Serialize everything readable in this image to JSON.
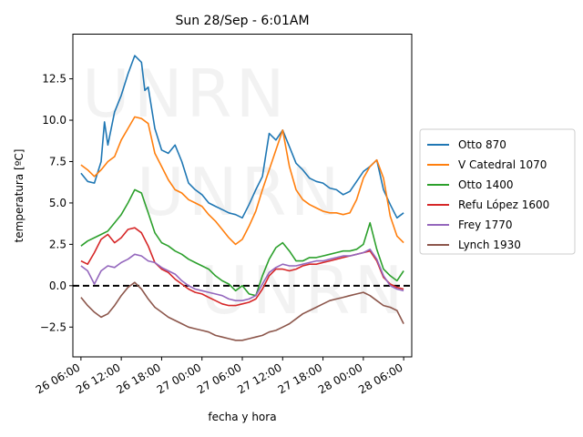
{
  "chart_data": {
    "type": "line",
    "title": "Sun 28/Sep - 6:01AM",
    "xlabel": "fecha y hora",
    "ylabel": "temperatura [ºC]",
    "ylim": [
      -4.3,
      15.2
    ],
    "xlim": [
      "2025-09-26 04:48",
      "2025-09-28 07:12"
    ],
    "x_ticks": [
      "2025-09-26 06:00",
      "2025-09-26 12:00",
      "2025-09-26 18:00",
      "2025-09-27 00:00",
      "2025-09-27 06:00",
      "2025-09-27 12:00",
      "2025-09-27 18:00",
      "2025-09-28 00:00",
      "2025-09-28 06:00"
    ],
    "x_tick_labels": [
      "26 06:00",
      "26 12:00",
      "26 18:00",
      "27 00:00",
      "27 06:00",
      "27 12:00",
      "27 18:00",
      "28 00:00",
      "28 06:00"
    ],
    "y_ticks": [
      -2.5,
      0.0,
      2.5,
      5.0,
      7.5,
      10.0,
      12.5
    ],
    "y_tick_labels": [
      "−2.5",
      "0.0",
      "2.5",
      "5.0",
      "7.5",
      "10.0",
      "12.5"
    ],
    "grid": false,
    "legend_position": "outside-right",
    "reference_line": {
      "y": 0,
      "style": "dashed",
      "color": "#000000"
    },
    "watermark": "UNRN",
    "series": [
      {
        "name": "Otto 870",
        "color": "#1f77b4",
        "x": [
          "2025-09-26 06:00",
          "2025-09-26 07:00",
          "2025-09-26 08:00",
          "2025-09-26 09:00",
          "2025-09-26 09:30",
          "2025-09-26 10:00",
          "2025-09-26 11:00",
          "2025-09-26 12:00",
          "2025-09-26 13:00",
          "2025-09-26 14:00",
          "2025-09-26 15:00",
          "2025-09-26 15:30",
          "2025-09-26 16:00",
          "2025-09-26 17:00",
          "2025-09-26 18:00",
          "2025-09-26 19:00",
          "2025-09-26 20:00",
          "2025-09-26 21:00",
          "2025-09-26 22:00",
          "2025-09-26 23:00",
          "2025-09-27 00:00",
          "2025-09-27 01:00",
          "2025-09-27 02:00",
          "2025-09-27 03:00",
          "2025-09-27 04:00",
          "2025-09-27 05:00",
          "2025-09-27 06:00",
          "2025-09-27 07:00",
          "2025-09-27 08:00",
          "2025-09-27 09:00",
          "2025-09-27 10:00",
          "2025-09-27 11:00",
          "2025-09-27 12:00",
          "2025-09-27 13:00",
          "2025-09-27 14:00",
          "2025-09-27 15:00",
          "2025-09-27 16:00",
          "2025-09-27 17:00",
          "2025-09-27 18:00",
          "2025-09-27 19:00",
          "2025-09-27 20:00",
          "2025-09-27 21:00",
          "2025-09-27 22:00",
          "2025-09-27 23:00",
          "2025-09-28 00:00",
          "2025-09-28 01:00",
          "2025-09-28 02:00",
          "2025-09-28 03:00",
          "2025-09-28 04:00",
          "2025-09-28 05:00",
          "2025-09-28 06:00"
        ],
        "y": [
          6.8,
          6.3,
          6.2,
          7.5,
          9.9,
          8.5,
          10.5,
          11.5,
          12.8,
          13.9,
          13.5,
          11.8,
          12.0,
          9.5,
          8.2,
          8.0,
          8.5,
          7.5,
          6.2,
          5.8,
          5.5,
          5.0,
          4.8,
          4.6,
          4.4,
          4.3,
          4.1,
          4.9,
          5.8,
          6.6,
          9.2,
          8.8,
          9.4,
          8.4,
          7.4,
          7.0,
          6.5,
          6.3,
          6.2,
          5.9,
          5.8,
          5.5,
          5.7,
          6.3,
          6.9,
          7.2,
          7.6,
          5.8,
          4.9,
          4.1,
          4.4
        ]
      },
      {
        "name": "V Catedral 1070",
        "color": "#ff7f0e",
        "x": [
          "2025-09-26 06:00",
          "2025-09-26 07:00",
          "2025-09-26 08:00",
          "2025-09-26 09:00",
          "2025-09-26 10:00",
          "2025-09-26 11:00",
          "2025-09-26 12:00",
          "2025-09-26 13:00",
          "2025-09-26 14:00",
          "2025-09-26 15:00",
          "2025-09-26 16:00",
          "2025-09-26 17:00",
          "2025-09-26 18:00",
          "2025-09-26 19:00",
          "2025-09-26 20:00",
          "2025-09-26 21:00",
          "2025-09-26 22:00",
          "2025-09-26 23:00",
          "2025-09-27 00:00",
          "2025-09-27 01:00",
          "2025-09-27 02:00",
          "2025-09-27 03:00",
          "2025-09-27 04:00",
          "2025-09-27 05:00",
          "2025-09-27 06:00",
          "2025-09-27 07:00",
          "2025-09-27 08:00",
          "2025-09-27 09:00",
          "2025-09-27 10:00",
          "2025-09-27 11:00",
          "2025-09-27 12:00",
          "2025-09-27 13:00",
          "2025-09-27 14:00",
          "2025-09-27 15:00",
          "2025-09-27 16:00",
          "2025-09-27 17:00",
          "2025-09-27 18:00",
          "2025-09-27 19:00",
          "2025-09-27 20:00",
          "2025-09-27 21:00",
          "2025-09-27 22:00",
          "2025-09-27 23:00",
          "2025-09-28 00:00",
          "2025-09-28 01:00",
          "2025-09-28 02:00",
          "2025-09-28 03:00",
          "2025-09-28 04:00",
          "2025-09-28 05:00",
          "2025-09-28 06:00"
        ],
        "y": [
          7.3,
          7.0,
          6.6,
          7.0,
          7.5,
          7.8,
          8.8,
          9.5,
          10.2,
          10.1,
          9.8,
          8.0,
          7.2,
          6.4,
          5.8,
          5.6,
          5.2,
          5.0,
          4.8,
          4.3,
          3.9,
          3.4,
          2.9,
          2.5,
          2.8,
          3.6,
          4.5,
          5.8,
          7.0,
          8.2,
          9.4,
          7.2,
          5.8,
          5.2,
          4.9,
          4.7,
          4.5,
          4.4,
          4.4,
          4.3,
          4.4,
          5.2,
          6.5,
          7.2,
          7.6,
          6.5,
          4.2,
          3.0,
          2.6
        ]
      },
      {
        "name": "Otto 1400",
        "color": "#2ca02c",
        "x": [
          "2025-09-26 06:00",
          "2025-09-26 07:00",
          "2025-09-26 08:00",
          "2025-09-26 09:00",
          "2025-09-26 10:00",
          "2025-09-26 11:00",
          "2025-09-26 12:00",
          "2025-09-26 13:00",
          "2025-09-26 14:00",
          "2025-09-26 15:00",
          "2025-09-26 16:00",
          "2025-09-26 17:00",
          "2025-09-26 18:00",
          "2025-09-26 19:00",
          "2025-09-26 20:00",
          "2025-09-26 21:00",
          "2025-09-26 22:00",
          "2025-09-26 23:00",
          "2025-09-27 00:00",
          "2025-09-27 01:00",
          "2025-09-27 02:00",
          "2025-09-27 03:00",
          "2025-09-27 04:00",
          "2025-09-27 05:00",
          "2025-09-27 06:00",
          "2025-09-27 07:00",
          "2025-09-27 08:00",
          "2025-09-27 09:00",
          "2025-09-27 10:00",
          "2025-09-27 11:00",
          "2025-09-27 12:00",
          "2025-09-27 13:00",
          "2025-09-27 14:00",
          "2025-09-27 15:00",
          "2025-09-27 16:00",
          "2025-09-27 17:00",
          "2025-09-27 18:00",
          "2025-09-27 19:00",
          "2025-09-27 20:00",
          "2025-09-27 21:00",
          "2025-09-27 22:00",
          "2025-09-27 23:00",
          "2025-09-28 00:00",
          "2025-09-28 01:00",
          "2025-09-28 02:00",
          "2025-09-28 03:00",
          "2025-09-28 04:00",
          "2025-09-28 05:00",
          "2025-09-28 06:00"
        ],
        "y": [
          2.4,
          2.7,
          2.9,
          3.1,
          3.3,
          3.8,
          4.3,
          5.0,
          5.8,
          5.6,
          4.4,
          3.2,
          2.6,
          2.4,
          2.1,
          1.9,
          1.6,
          1.4,
          1.2,
          1.0,
          0.6,
          0.3,
          0.1,
          -0.3,
          0.0,
          -0.5,
          -0.6,
          0.6,
          1.6,
          2.3,
          2.6,
          2.1,
          1.5,
          1.5,
          1.7,
          1.7,
          1.8,
          1.9,
          2.0,
          2.1,
          2.1,
          2.2,
          2.5,
          3.8,
          2.2,
          1.0,
          0.6,
          0.3,
          0.9
        ]
      },
      {
        "name": "Refu López 1600",
        "color": "#d62728",
        "x": [
          "2025-09-26 06:00",
          "2025-09-26 07:00",
          "2025-09-26 08:00",
          "2025-09-26 09:00",
          "2025-09-26 10:00",
          "2025-09-26 11:00",
          "2025-09-26 12:00",
          "2025-09-26 13:00",
          "2025-09-26 14:00",
          "2025-09-26 15:00",
          "2025-09-26 16:00",
          "2025-09-26 17:00",
          "2025-09-26 18:00",
          "2025-09-26 19:00",
          "2025-09-26 20:00",
          "2025-09-26 21:00",
          "2025-09-26 22:00",
          "2025-09-26 23:00",
          "2025-09-27 00:00",
          "2025-09-27 01:00",
          "2025-09-27 02:00",
          "2025-09-27 03:00",
          "2025-09-27 04:00",
          "2025-09-27 05:00",
          "2025-09-27 06:00",
          "2025-09-27 07:00",
          "2025-09-27 08:00",
          "2025-09-27 09:00",
          "2025-09-27 10:00",
          "2025-09-27 11:00",
          "2025-09-27 12:00",
          "2025-09-27 13:00",
          "2025-09-27 14:00",
          "2025-09-27 15:00",
          "2025-09-27 16:00",
          "2025-09-27 17:00",
          "2025-09-27 18:00",
          "2025-09-27 19:00",
          "2025-09-27 20:00",
          "2025-09-27 21:00",
          "2025-09-27 22:00",
          "2025-09-27 23:00",
          "2025-09-28 00:00",
          "2025-09-28 01:00",
          "2025-09-28 02:00",
          "2025-09-28 03:00",
          "2025-09-28 04:00",
          "2025-09-28 05:00",
          "2025-09-28 06:00"
        ],
        "y": [
          1.5,
          1.3,
          2.0,
          2.8,
          3.1,
          2.6,
          2.9,
          3.4,
          3.5,
          3.2,
          2.4,
          1.4,
          1.0,
          0.8,
          0.4,
          0.1,
          -0.2,
          -0.4,
          -0.5,
          -0.7,
          -0.9,
          -1.1,
          -1.2,
          -1.2,
          -1.1,
          -1.0,
          -0.8,
          -0.2,
          0.6,
          1.0,
          1.0,
          0.9,
          1.0,
          1.2,
          1.3,
          1.3,
          1.4,
          1.5,
          1.6,
          1.7,
          1.8,
          1.9,
          2.0,
          2.1,
          1.5,
          0.5,
          0.1,
          -0.1,
          -0.2
        ]
      },
      {
        "name": "Frey 1770",
        "color": "#9467bd",
        "x": [
          "2025-09-26 06:00",
          "2025-09-26 07:00",
          "2025-09-26 08:00",
          "2025-09-26 09:00",
          "2025-09-26 10:00",
          "2025-09-26 11:00",
          "2025-09-26 12:00",
          "2025-09-26 13:00",
          "2025-09-26 14:00",
          "2025-09-26 15:00",
          "2025-09-26 16:00",
          "2025-09-26 17:00",
          "2025-09-26 18:00",
          "2025-09-26 19:00",
          "2025-09-26 20:00",
          "2025-09-26 21:00",
          "2025-09-26 22:00",
          "2025-09-26 23:00",
          "2025-09-27 00:00",
          "2025-09-27 01:00",
          "2025-09-27 02:00",
          "2025-09-27 03:00",
          "2025-09-27 04:00",
          "2025-09-27 05:00",
          "2025-09-27 06:00",
          "2025-09-27 07:00",
          "2025-09-27 08:00",
          "2025-09-27 09:00",
          "2025-09-27 10:00",
          "2025-09-27 11:00",
          "2025-09-27 12:00",
          "2025-09-27 13:00",
          "2025-09-27 14:00",
          "2025-09-27 15:00",
          "2025-09-27 16:00",
          "2025-09-27 17:00",
          "2025-09-27 18:00",
          "2025-09-27 19:00",
          "2025-09-27 20:00",
          "2025-09-27 21:00",
          "2025-09-27 22:00",
          "2025-09-27 23:00",
          "2025-09-28 00:00",
          "2025-09-28 01:00",
          "2025-09-28 02:00",
          "2025-09-28 03:00",
          "2025-09-28 04:00",
          "2025-09-28 05:00",
          "2025-09-28 06:00"
        ],
        "y": [
          1.2,
          0.9,
          0.1,
          0.9,
          1.2,
          1.1,
          1.4,
          1.6,
          1.9,
          1.8,
          1.5,
          1.4,
          1.1,
          0.9,
          0.7,
          0.3,
          0.0,
          -0.2,
          -0.3,
          -0.4,
          -0.5,
          -0.6,
          -0.8,
          -0.9,
          -0.9,
          -0.8,
          -0.6,
          0.1,
          0.8,
          1.1,
          1.3,
          1.2,
          1.2,
          1.3,
          1.4,
          1.5,
          1.5,
          1.6,
          1.7,
          1.8,
          1.8,
          1.9,
          2.0,
          2.2,
          1.6,
          0.6,
          0.0,
          -0.2,
          -0.3
        ]
      },
      {
        "name": "Lynch 1930",
        "color": "#8c564b",
        "x": [
          "2025-09-26 06:00",
          "2025-09-26 07:00",
          "2025-09-26 08:00",
          "2025-09-26 09:00",
          "2025-09-26 10:00",
          "2025-09-26 11:00",
          "2025-09-26 12:00",
          "2025-09-26 13:00",
          "2025-09-26 14:00",
          "2025-09-26 15:00",
          "2025-09-26 16:00",
          "2025-09-26 17:00",
          "2025-09-26 18:00",
          "2025-09-26 19:00",
          "2025-09-26 20:00",
          "2025-09-26 21:00",
          "2025-09-26 22:00",
          "2025-09-26 23:00",
          "2025-09-27 00:00",
          "2025-09-27 01:00",
          "2025-09-27 02:00",
          "2025-09-27 03:00",
          "2025-09-27 04:00",
          "2025-09-27 05:00",
          "2025-09-27 06:00",
          "2025-09-27 07:00",
          "2025-09-27 08:00",
          "2025-09-27 09:00",
          "2025-09-27 10:00",
          "2025-09-27 11:00",
          "2025-09-27 12:00",
          "2025-09-27 13:00",
          "2025-09-27 14:00",
          "2025-09-27 15:00",
          "2025-09-27 16:00",
          "2025-09-27 17:00",
          "2025-09-27 18:00",
          "2025-09-27 19:00",
          "2025-09-27 20:00",
          "2025-09-27 21:00",
          "2025-09-27 22:00",
          "2025-09-27 23:00",
          "2025-09-28 00:00",
          "2025-09-28 01:00",
          "2025-09-28 02:00",
          "2025-09-28 03:00",
          "2025-09-28 04:00",
          "2025-09-28 05:00",
          "2025-09-28 06:00"
        ],
        "y": [
          -0.7,
          -1.2,
          -1.6,
          -1.9,
          -1.7,
          -1.2,
          -0.6,
          -0.1,
          0.2,
          -0.2,
          -0.8,
          -1.3,
          -1.6,
          -1.9,
          -2.1,
          -2.3,
          -2.5,
          -2.6,
          -2.7,
          -2.8,
          -3.0,
          -3.1,
          -3.2,
          -3.3,
          -3.3,
          -3.2,
          -3.1,
          -3.0,
          -2.8,
          -2.7,
          -2.5,
          -2.3,
          -2.0,
          -1.7,
          -1.5,
          -1.3,
          -1.1,
          -0.9,
          -0.8,
          -0.7,
          -0.6,
          -0.5,
          -0.4,
          -0.6,
          -0.9,
          -1.2,
          -1.3,
          -1.5,
          -2.3
        ]
      }
    ]
  }
}
